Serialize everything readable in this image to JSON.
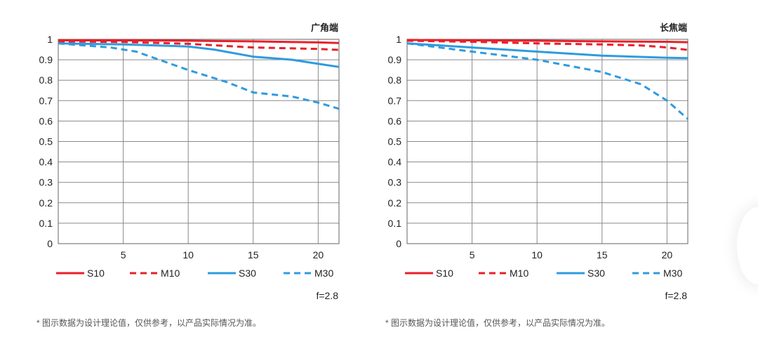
{
  "chart_data": [
    {
      "type": "line",
      "title": "广角端",
      "x_ticks": [
        5,
        10,
        15,
        20
      ],
      "y_ticks": [
        "0",
        "0.1",
        "0.2",
        "0.3",
        "0.4",
        "0.5",
        "0.6",
        "0.7",
        "0.8",
        "0.9",
        "1"
      ],
      "xlim": [
        0,
        21.6
      ],
      "ylim": [
        0,
        1
      ],
      "grid": true,
      "legend_position": "bottom",
      "series": [
        {
          "name": "S10",
          "color": "#e8202a",
          "style": "solid",
          "x": [
            0,
            5,
            10,
            15,
            20,
            21.6
          ],
          "y": [
            0.995,
            0.995,
            0.993,
            0.99,
            0.985,
            0.982
          ]
        },
        {
          "name": "M10",
          "color": "#e8202a",
          "style": "dashed",
          "x": [
            0,
            5,
            10,
            15,
            20,
            21.6
          ],
          "y": [
            0.99,
            0.987,
            0.978,
            0.96,
            0.953,
            0.948
          ]
        },
        {
          "name": "S30",
          "color": "#2e9be0",
          "style": "solid",
          "x": [
            0,
            5,
            10,
            12,
            15,
            18,
            20,
            21.6
          ],
          "y": [
            0.98,
            0.975,
            0.965,
            0.95,
            0.915,
            0.9,
            0.88,
            0.865
          ]
        },
        {
          "name": "M30",
          "color": "#2e9be0",
          "style": "dashed",
          "x": [
            0,
            4,
            6,
            10,
            13,
            15,
            18,
            20,
            21.6
          ],
          "y": [
            0.98,
            0.96,
            0.94,
            0.85,
            0.79,
            0.74,
            0.72,
            0.69,
            0.66
          ]
        }
      ],
      "note": "f=2.8"
    },
    {
      "type": "line",
      "title": "长焦端",
      "x_ticks": [
        5,
        10,
        15,
        20
      ],
      "y_ticks": [
        "0",
        "0.1",
        "0.2",
        "0.3",
        "0.4",
        "0.5",
        "0.6",
        "0.7",
        "0.8",
        "0.9",
        "1"
      ],
      "xlim": [
        0,
        21.6
      ],
      "ylim": [
        0,
        1
      ],
      "grid": true,
      "legend_position": "bottom",
      "series": [
        {
          "name": "S10",
          "color": "#e8202a",
          "style": "solid",
          "x": [
            0,
            5,
            10,
            15,
            20,
            21.6
          ],
          "y": [
            0.997,
            0.995,
            0.993,
            0.99,
            0.988,
            0.986
          ]
        },
        {
          "name": "M10",
          "color": "#e8202a",
          "style": "dashed",
          "x": [
            0,
            5,
            10,
            15,
            18,
            20,
            21.6
          ],
          "y": [
            0.993,
            0.988,
            0.98,
            0.975,
            0.97,
            0.96,
            0.948
          ]
        },
        {
          "name": "S30",
          "color": "#2e9be0",
          "style": "solid",
          "x": [
            0,
            5,
            10,
            15,
            20,
            21.6
          ],
          "y": [
            0.98,
            0.96,
            0.94,
            0.92,
            0.91,
            0.908
          ]
        },
        {
          "name": "M30",
          "color": "#2e9be0",
          "style": "dashed",
          "x": [
            0,
            5,
            10,
            15,
            18,
            20,
            21.6
          ],
          "y": [
            0.98,
            0.94,
            0.9,
            0.84,
            0.78,
            0.7,
            0.61
          ]
        }
      ],
      "note": "f=2.8"
    }
  ],
  "footnotes": [
    "* 图示数据为设计理论值，仅供参考，以产品实际情况为准。",
    "* 图示数据为设计理论值，仅供参考，以产品实际情况为准。"
  ]
}
